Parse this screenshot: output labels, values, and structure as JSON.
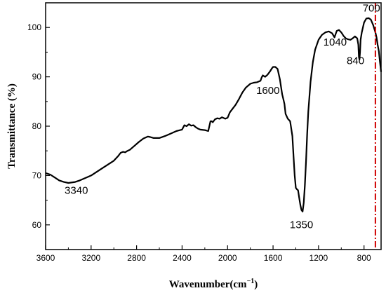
{
  "chart_data": {
    "type": "line",
    "title": "",
    "xlabel": "Wavenumber(cm",
    "xlabel_sup": "−1",
    "xlabel_close": ")",
    "ylabel": "Transmittance (%)",
    "xlim": [
      3600,
      650
    ],
    "ylim": [
      55,
      105
    ],
    "x_reversed": true,
    "grid": false,
    "xticks": [
      3600,
      3200,
      2800,
      2400,
      2000,
      1600,
      1200,
      800
    ],
    "yticks": [
      60,
      70,
      80,
      90,
      100
    ],
    "line_color": "#000000",
    "marker_line": {
      "x": 700,
      "color": "#d00000",
      "style": "dash-dot"
    },
    "series": [
      {
        "x": [
          3600,
          3560,
          3520,
          3480,
          3440,
          3400,
          3340,
          3300,
          3200,
          3100,
          3000,
          2960,
          2940,
          2920,
          2900,
          2880,
          2860,
          2820,
          2780,
          2740,
          2700,
          2680,
          2650,
          2600,
          2550,
          2500,
          2450,
          2400,
          2380,
          2360,
          2340,
          2320,
          2300,
          2280,
          2260,
          2240,
          2200,
          2170,
          2160,
          2150,
          2140,
          2130,
          2110,
          2090,
          2070,
          2050,
          2020,
          2000,
          1980,
          1960,
          1930,
          1900,
          1870,
          1840,
          1800,
          1770,
          1740,
          1710,
          1700,
          1690,
          1670,
          1650,
          1630,
          1610,
          1600,
          1580,
          1560,
          1540,
          1520,
          1510,
          1500,
          1490,
          1470,
          1450,
          1430,
          1420,
          1410,
          1400,
          1390,
          1380,
          1370,
          1360,
          1350,
          1340,
          1330,
          1320,
          1310,
          1300,
          1290,
          1270,
          1250,
          1230,
          1200,
          1170,
          1140,
          1110,
          1080,
          1060,
          1040,
          1020,
          1000,
          980,
          960,
          940,
          920,
          900,
          880,
          860,
          850,
          845,
          840,
          835,
          830,
          820,
          800,
          780,
          760,
          740,
          720,
          700,
          690,
          680,
          670,
          660,
          650
        ],
        "y": [
          70.5,
          70.2,
          69.6,
          69.0,
          68.7,
          68.5,
          68.7,
          69.0,
          70.0,
          71.5,
          73.0,
          74.0,
          74.6,
          74.8,
          74.7,
          75.0,
          75.2,
          76.0,
          76.8,
          77.5,
          77.9,
          77.8,
          77.6,
          77.6,
          78.0,
          78.5,
          79.0,
          79.3,
          80.2,
          80.0,
          80.4,
          80.1,
          80.2,
          79.8,
          79.5,
          79.3,
          79.2,
          79.0,
          80.0,
          81.0,
          81.0,
          80.8,
          81.4,
          81.6,
          81.5,
          81.8,
          81.5,
          81.7,
          82.8,
          83.4,
          84.3,
          85.5,
          86.8,
          87.8,
          88.6,
          88.8,
          88.9,
          89.2,
          89.9,
          90.3,
          90.0,
          90.4,
          91.0,
          91.7,
          92.0,
          92.0,
          91.6,
          89.5,
          86.5,
          85.5,
          84.5,
          82.5,
          81.5,
          81.0,
          78.0,
          74.0,
          70.0,
          67.5,
          67.2,
          67.0,
          65.5,
          64.0,
          63.0,
          62.7,
          64.5,
          68.0,
          73.0,
          78.5,
          83.0,
          89.0,
          93.0,
          95.5,
          97.5,
          98.5,
          99.0,
          99.2,
          98.8,
          98.0,
          99.3,
          99.5,
          99.0,
          98.3,
          97.8,
          97.6,
          97.5,
          97.8,
          98.2,
          97.8,
          96.5,
          94.0,
          93.5,
          95.0,
          97.5,
          99.0,
          101.0,
          101.8,
          101.9,
          101.6,
          100.5,
          99.0,
          98.0,
          96.5,
          95.2,
          93.0,
          91.0
        ]
      }
    ],
    "annotations": [
      {
        "text": "3340",
        "x": 3330,
        "y": 66.3,
        "color": "#000000"
      },
      {
        "text": "1600",
        "x": 1645,
        "y": 86.5,
        "color": "#000000"
      },
      {
        "text": "1350",
        "x": 1350,
        "y": 59.3,
        "color": "#000000"
      },
      {
        "text": "1040",
        "x": 1055,
        "y": 96.3,
        "color": "#000000"
      },
      {
        "text": "840",
        "x": 875,
        "y": 92.6,
        "color": "#000000"
      },
      {
        "text": "700",
        "x": 735,
        "y": 103.2,
        "color": "#d00000"
      }
    ]
  }
}
